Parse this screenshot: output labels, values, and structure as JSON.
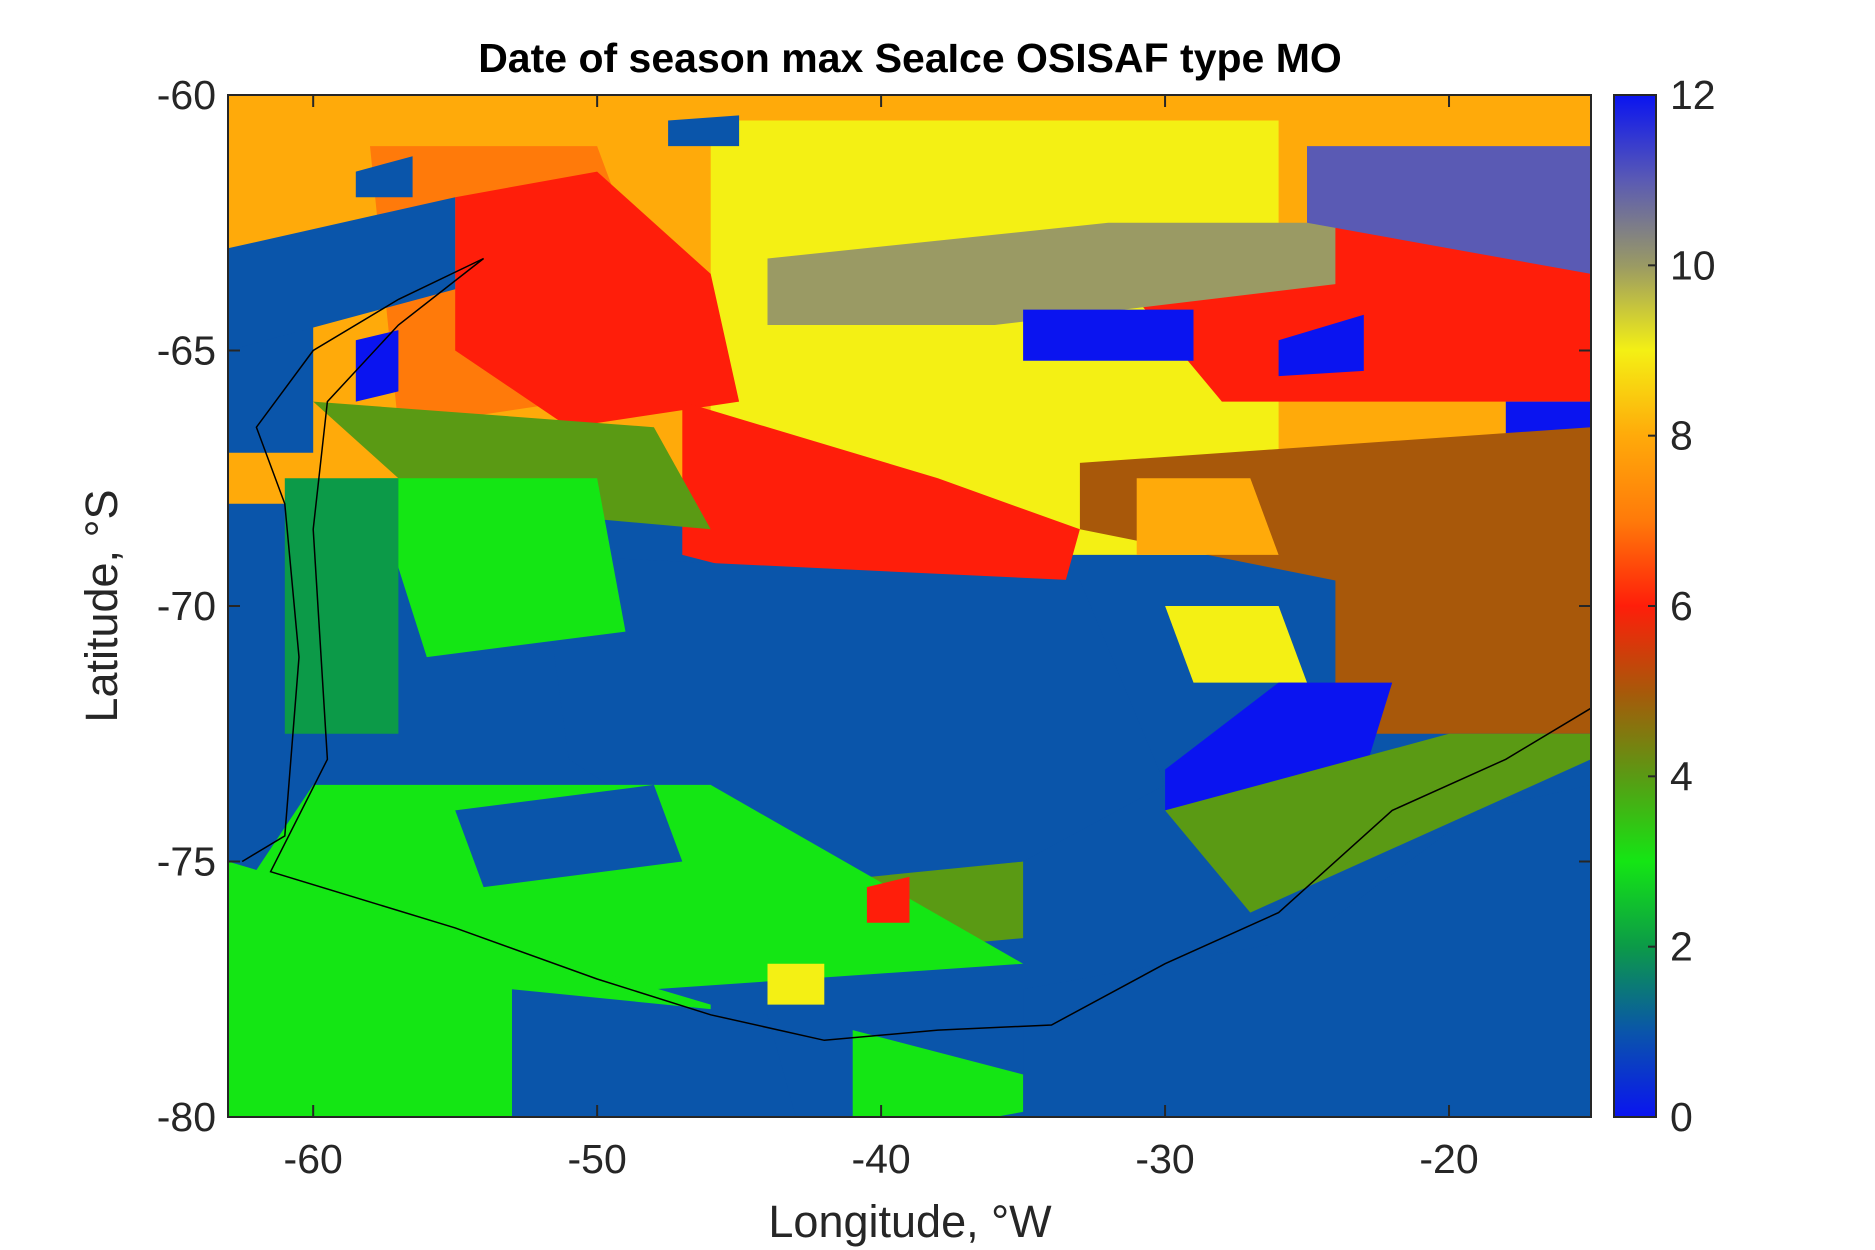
{
  "chart_data": {
    "type": "heatmap",
    "title": "Date of season max SeaIce OSISAF type MO",
    "xlabel": "Longitude, °W",
    "ylabel": "Latitude, °S",
    "xlim": [
      -63,
      -15
    ],
    "ylim": [
      -80,
      -60
    ],
    "x_ticks": [
      -60,
      -50,
      -40,
      -30,
      -20
    ],
    "y_ticks": [
      -60,
      -65,
      -70,
      -75,
      -80
    ],
    "colorbar": {
      "range": [
        0,
        12
      ],
      "ticks": [
        0,
        2,
        4,
        6,
        8,
        10,
        12
      ],
      "colormap": [
        {
          "value": 0,
          "color": "#0a14f0"
        },
        {
          "value": 1,
          "color": "#0a55aa"
        },
        {
          "value": 2,
          "color": "#0c9a48"
        },
        {
          "value": 3,
          "color": "#14e614"
        },
        {
          "value": 4,
          "color": "#5a9a14"
        },
        {
          "value": 5,
          "color": "#a8580a"
        },
        {
          "value": 6,
          "color": "#ff1e0a"
        },
        {
          "value": 7,
          "color": "#ff7a0a"
        },
        {
          "value": 8,
          "color": "#ffaa0a"
        },
        {
          "value": 9,
          "color": "#f4f014"
        },
        {
          "value": 10,
          "color": "#9a9a64"
        },
        {
          "value": 11,
          "color": "#5a5ab4"
        },
        {
          "value": 12,
          "color": "#0a14f0"
        }
      ]
    },
    "regions": [
      {
        "value": 8,
        "polygon": [
          [
            -63,
            -60
          ],
          [
            -15,
            -60
          ],
          [
            -15,
            -68
          ],
          [
            -63,
            -68
          ]
        ]
      },
      {
        "value": 9,
        "polygon": [
          [
            -46,
            -60.5
          ],
          [
            -26,
            -60.5
          ],
          [
            -26,
            -69
          ],
          [
            -46,
            -69
          ]
        ]
      },
      {
        "value": 7,
        "polygon": [
          [
            -58,
            -61
          ],
          [
            -50,
            -61
          ],
          [
            -48,
            -64
          ],
          [
            -51,
            -66
          ],
          [
            -57,
            -66.5
          ]
        ]
      },
      {
        "value": 6,
        "polygon": [
          [
            -55,
            -62
          ],
          [
            -50,
            -61.5
          ],
          [
            -46,
            -63.5
          ],
          [
            -45,
            -66
          ],
          [
            -51,
            -66.5
          ],
          [
            -55,
            -65
          ]
        ]
      },
      {
        "value": 6,
        "polygon": [
          [
            -47,
            -66
          ],
          [
            -38,
            -67.5
          ],
          [
            -33,
            -68.5
          ],
          [
            -34,
            -70.5
          ],
          [
            -40,
            -70
          ],
          [
            -47,
            -69
          ]
        ]
      },
      {
        "value": 6,
        "polygon": [
          [
            -31,
            -64
          ],
          [
            -21,
            -62
          ],
          [
            -15,
            -62.5
          ],
          [
            -15,
            -66
          ],
          [
            -28,
            -66
          ]
        ]
      },
      {
        "value": 10,
        "polygon": [
          [
            -44,
            -63.2
          ],
          [
            -32,
            -62.5
          ],
          [
            -24,
            -62.5
          ],
          [
            -24,
            -63.7
          ],
          [
            -36,
            -64.5
          ],
          [
            -44,
            -64.5
          ]
        ]
      },
      {
        "value": 11,
        "polygon": [
          [
            -25,
            -61
          ],
          [
            -15,
            -61
          ],
          [
            -15,
            -63.5
          ],
          [
            -25,
            -62.5
          ]
        ]
      },
      {
        "value": 0,
        "polygon": [
          [
            -35,
            -64.2
          ],
          [
            -29,
            -64.2
          ],
          [
            -29,
            -65.2
          ],
          [
            -35,
            -65.2
          ]
        ]
      },
      {
        "value": 0,
        "polygon": [
          [
            -26,
            -64.8
          ],
          [
            -23,
            -64.3
          ],
          [
            -23,
            -65.4
          ],
          [
            -26,
            -65.5
          ]
        ]
      },
      {
        "value": 0,
        "polygon": [
          [
            -18,
            -66
          ],
          [
            -15,
            -66
          ],
          [
            -15,
            -67.3
          ],
          [
            -18,
            -67.3
          ]
        ]
      },
      {
        "value": 5,
        "polygon": [
          [
            -33,
            -67.2
          ],
          [
            -15,
            -66.5
          ],
          [
            -15,
            -72.5
          ],
          [
            -24,
            -72.5
          ],
          [
            -24,
            -69.5
          ],
          [
            -33,
            -68.5
          ]
        ]
      },
      {
        "value": 8,
        "polygon": [
          [
            -31,
            -67.5
          ],
          [
            -27,
            -67.5
          ],
          [
            -26,
            -69
          ],
          [
            -31,
            -69
          ]
        ]
      },
      {
        "value": 9,
        "polygon": [
          [
            -30,
            -70
          ],
          [
            -26,
            -70
          ],
          [
            -25,
            -71.5
          ],
          [
            -29,
            -71.5
          ]
        ]
      },
      {
        "value": 0,
        "polygon": [
          [
            -26,
            -71.5
          ],
          [
            -22,
            -71.5
          ],
          [
            -23,
            -73.3
          ],
          [
            -30,
            -74
          ],
          [
            -30,
            -73.2
          ]
        ]
      },
      {
        "value": 4,
        "polygon": [
          [
            -60,
            -66
          ],
          [
            -48,
            -66.5
          ],
          [
            -46,
            -68.5
          ],
          [
            -56,
            -68
          ]
        ]
      },
      {
        "value": 4,
        "polygon": [
          [
            -30,
            -74
          ],
          [
            -20,
            -72.5
          ],
          [
            -15,
            -72.5
          ],
          [
            -15,
            -73
          ],
          [
            -27,
            -76
          ]
        ]
      },
      {
        "value": 4,
        "polygon": [
          [
            -45,
            -75.5
          ],
          [
            -35,
            -75
          ],
          [
            -35,
            -76.5
          ],
          [
            -45,
            -77
          ]
        ]
      },
      {
        "value": 1,
        "polygon": [
          [
            -52,
            -69
          ],
          [
            -33,
            -69.5
          ],
          [
            -30,
            -73.5
          ],
          [
            -35,
            -75
          ],
          [
            -44,
            -75.5
          ],
          [
            -51,
            -73
          ]
        ]
      },
      {
        "value": 3,
        "polygon": [
          [
            -58,
            -67.5
          ],
          [
            -50,
            -67.5
          ],
          [
            -49,
            -70.5
          ],
          [
            -56,
            -71
          ]
        ]
      },
      {
        "value": 3,
        "polygon": [
          [
            -60,
            -73.5
          ],
          [
            -46,
            -73.5
          ],
          [
            -35,
            -77
          ],
          [
            -48,
            -77.5
          ],
          [
            -63,
            -76
          ]
        ]
      },
      {
        "value": 1,
        "polygon": [
          [
            -55,
            -74
          ],
          [
            -48,
            -73.5
          ],
          [
            -47,
            -75
          ],
          [
            -54,
            -75.5
          ]
        ]
      },
      {
        "value": 2,
        "polygon": [
          [
            -61,
            -67.5
          ],
          [
            -57,
            -67.5
          ],
          [
            -57,
            -72.5
          ],
          [
            -61,
            -72.5
          ]
        ]
      },
      {
        "value": 3,
        "polygon": [
          [
            -63,
            -75
          ],
          [
            -46,
            -77.8
          ],
          [
            -46,
            -78.5
          ],
          [
            -53,
            -80
          ],
          [
            -63,
            -80
          ]
        ]
      },
      {
        "value": 3,
        "polygon": [
          [
            -41,
            -78.3
          ],
          [
            -32,
            -79.6
          ],
          [
            -36,
            -80
          ],
          [
            -41,
            -80
          ]
        ]
      },
      {
        "value": 1,
        "polygon": [
          [
            -63,
            -64.8
          ],
          [
            -60,
            -64.5
          ],
          [
            -60,
            -67
          ],
          [
            -63,
            -67
          ]
        ]
      },
      {
        "value": 1,
        "polygon": [
          [
            -15,
            -73.5
          ],
          [
            -15,
            -80
          ],
          [
            -35,
            -80
          ],
          [
            -35,
            -77.5
          ],
          [
            -25,
            -76.5
          ],
          [
            -19,
            -74
          ]
        ]
      },
      {
        "value": 1,
        "polygon": [
          [
            -53,
            -77.5
          ],
          [
            -44,
            -78
          ],
          [
            -43,
            -80
          ],
          [
            -53,
            -80
          ]
        ]
      },
      {
        "value": 6,
        "polygon": [
          [
            -40.5,
            -75.5
          ],
          [
            -39,
            -75.3
          ],
          [
            -39,
            -76.2
          ],
          [
            -40.5,
            -76.2
          ]
        ]
      },
      {
        "value": 9,
        "polygon": [
          [
            -44,
            -77
          ],
          [
            -42,
            -77
          ],
          [
            -42,
            -77.8
          ],
          [
            -44,
            -77.8
          ]
        ]
      },
      {
        "value": 1,
        "polygon": [
          [
            -63,
            -63
          ],
          [
            -55,
            -62
          ],
          [
            -55,
            -63.8
          ],
          [
            -63,
            -65
          ]
        ]
      },
      {
        "value": 1,
        "polygon": [
          [
            -58.5,
            -61.5
          ],
          [
            -56.5,
            -61.2
          ],
          [
            -56.5,
            -62
          ],
          [
            -58.5,
            -62
          ]
        ]
      },
      {
        "value": 1,
        "polygon": [
          [
            -47.5,
            -60.5
          ],
          [
            -45,
            -60.4
          ],
          [
            -45,
            -61
          ],
          [
            -47.5,
            -61
          ]
        ]
      },
      {
        "value": 0,
        "polygon": [
          [
            -58.5,
            -64.8
          ],
          [
            -57,
            -64.6
          ],
          [
            -57,
            -65.8
          ],
          [
            -58.5,
            -66
          ]
        ]
      }
    ],
    "coastline": [
      [
        -62.5,
        -75
      ],
      [
        -61,
        -74.5
      ],
      [
        -60.5,
        -71
      ],
      [
        -61,
        -68
      ],
      [
        -62,
        -66.5
      ],
      [
        -60,
        -65
      ],
      [
        -57,
        -64
      ],
      [
        -54,
        -63.2
      ],
      [
        -57,
        -64.5
      ],
      [
        -59.5,
        -66
      ],
      [
        -60,
        -68.5
      ],
      [
        -59.5,
        -73
      ],
      [
        -61.5,
        -75.2
      ],
      [
        -55,
        -76.3
      ],
      [
        -50,
        -77.3
      ],
      [
        -46,
        -78
      ],
      [
        -42,
        -78.5
      ],
      [
        -38,
        -78.3
      ],
      [
        -34,
        -78.2
      ],
      [
        -30,
        -77
      ],
      [
        -26,
        -76
      ],
      [
        -22,
        -74
      ],
      [
        -18,
        -73
      ],
      [
        -15,
        -72
      ]
    ]
  }
}
